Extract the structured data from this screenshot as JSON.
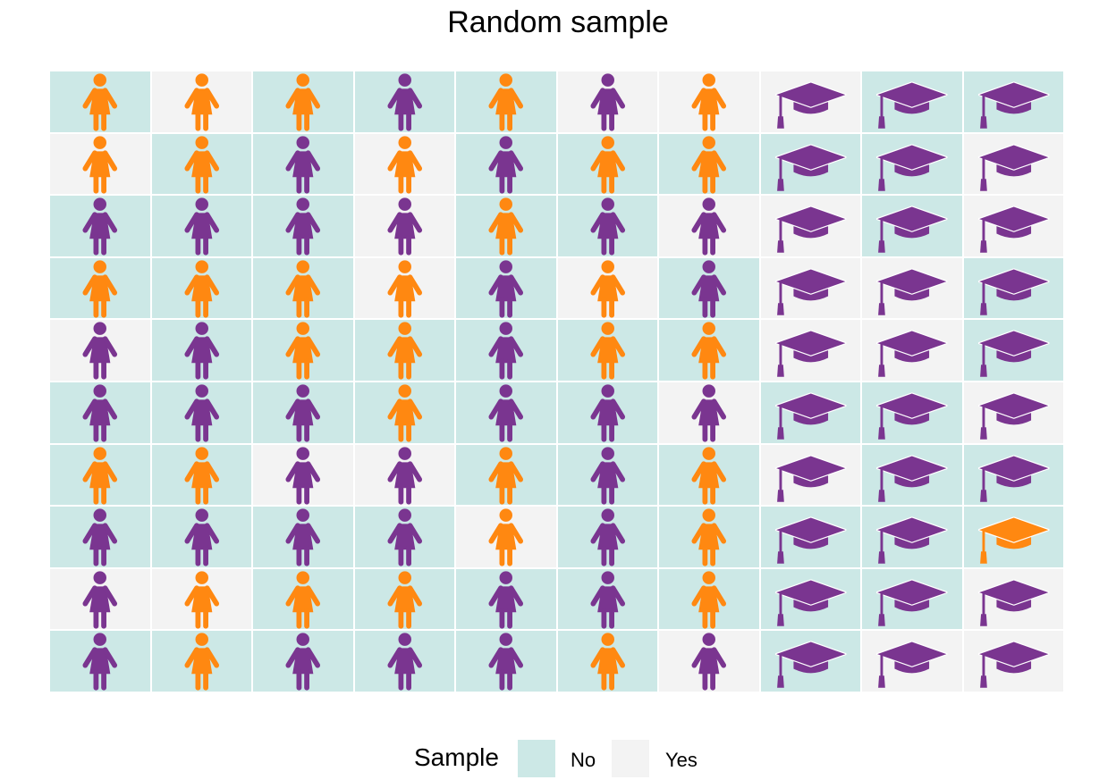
{
  "chart_data": {
    "type": "table",
    "title": "Random sample",
    "rows": 10,
    "cols": 10,
    "colors": {
      "orange": "#ff8811",
      "purple": "#7a3590",
      "sample_no": "#cce8e6",
      "sample_yes": "#f3f3f3"
    },
    "legend": {
      "title": "Sample",
      "position": "bottom",
      "items": [
        {
          "label": "No",
          "color": "#cce8e6"
        },
        {
          "label": "Yes",
          "color": "#f3f3f3"
        }
      ]
    },
    "icon_key": {
      "P": "person-icon",
      "G": "graduation-cap-icon"
    },
    "color_key": {
      "o": "orange",
      "p": "purple"
    },
    "sample_key": {
      "N": "No",
      "Y": "Yes"
    },
    "cells": [
      [
        "PoN",
        "PoY",
        "PoN",
        "PpN",
        "PoN",
        "PpY",
        "PoY",
        "GpY",
        "GpN",
        "GpN"
      ],
      [
        "PoY",
        "PoN",
        "PpN",
        "PoY",
        "PpN",
        "PoN",
        "PoN",
        "GpN",
        "GpN",
        "GpY"
      ],
      [
        "PpN",
        "PpN",
        "PpN",
        "PpY",
        "PoN",
        "PpN",
        "PpY",
        "GpY",
        "GpN",
        "GpY"
      ],
      [
        "PoN",
        "PoN",
        "PoN",
        "PoY",
        "PpN",
        "PoY",
        "PpN",
        "GpY",
        "GpY",
        "GpN"
      ],
      [
        "PpY",
        "PpN",
        "PoN",
        "PoN",
        "PpN",
        "PoN",
        "PoN",
        "GpY",
        "GpY",
        "GpN"
      ],
      [
        "PpN",
        "PpN",
        "PpN",
        "PoN",
        "PpN",
        "PpN",
        "PpY",
        "GpN",
        "GpN",
        "GpY"
      ],
      [
        "PoN",
        "PoN",
        "PpY",
        "PpY",
        "PoN",
        "PpN",
        "PoN",
        "GpY",
        "GpN",
        "GpN"
      ],
      [
        "PpN",
        "PpN",
        "PpN",
        "PpN",
        "PoY",
        "PpN",
        "PoN",
        "GpN",
        "GpN",
        "GoN"
      ],
      [
        "PpY",
        "PoY",
        "PoN",
        "PoN",
        "PpN",
        "PpN",
        "PoN",
        "GpN",
        "GpN",
        "GpY"
      ],
      [
        "PpN",
        "PoN",
        "PpN",
        "PpN",
        "PpN",
        "PoN",
        "PpY",
        "GpN",
        "GpY",
        "GpY"
      ]
    ]
  }
}
